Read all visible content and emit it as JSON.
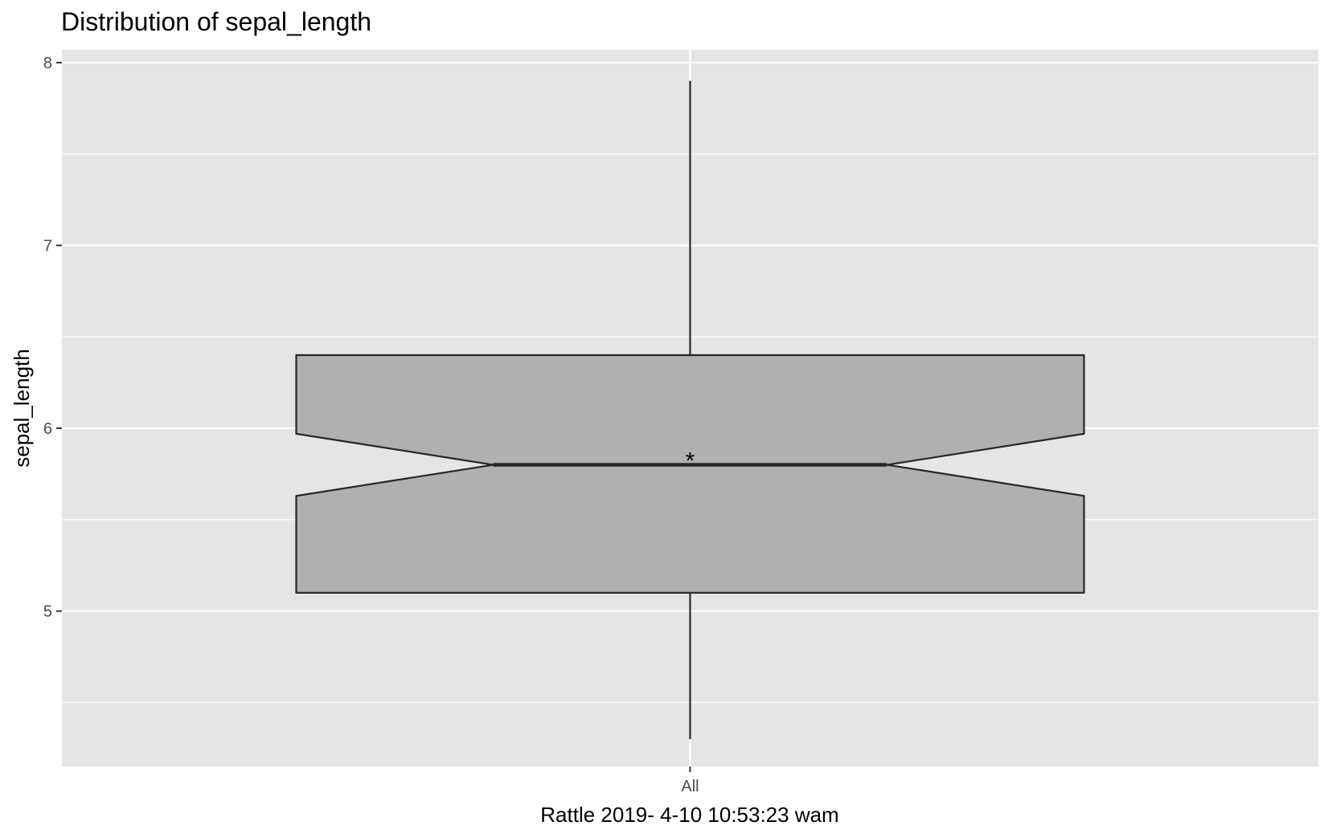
{
  "chart_data": {
    "type": "boxplot",
    "title": "Distribution of sepal_length",
    "xlabel": "Rattle 2019- 4-10 10:53:23 wam",
    "ylabel": "sepal_length",
    "categories": [
      "All"
    ],
    "ylim": [
      4.15,
      8.07
    ],
    "y_ticks": [
      5,
      6,
      7,
      8
    ],
    "y_tick_labels": [
      "5",
      "6",
      "7",
      "8"
    ],
    "grid": true,
    "notched": true,
    "box": {
      "category": "All",
      "min": 4.3,
      "q1": 5.1,
      "median": 5.8,
      "q3": 6.4,
      "max": 7.9,
      "notch_lower": 5.63,
      "notch_upper": 5.97,
      "mean": 5.84
    },
    "colors": {
      "panel_background": "#e5e5e5",
      "grid_line": "#ffffff",
      "box_fill": "#b0b0b0",
      "box_stroke": "#262626",
      "text": "#000000",
      "tick_text": "#4d4d4d"
    }
  }
}
